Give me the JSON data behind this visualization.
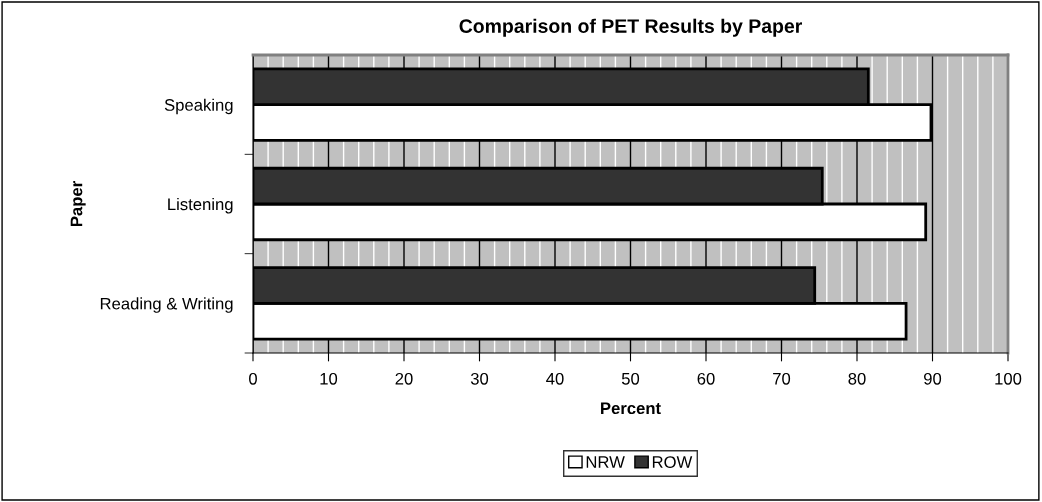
{
  "chart_data": {
    "type": "bar",
    "orientation": "horizontal",
    "title": "Comparison of PET Results by Paper",
    "xlabel": "Percent",
    "ylabel": "Paper",
    "categories": [
      "Speaking",
      "Listening",
      "Reading & Writing"
    ],
    "series": [
      {
        "name": "NRW",
        "color": "#ffffff",
        "values": [
          89.8,
          89.1,
          86.5
        ]
      },
      {
        "name": "ROW",
        "color": "#333333",
        "values": [
          81.5,
          75.4,
          74.4
        ]
      }
    ],
    "xlim": [
      0,
      100
    ],
    "xticks": [
      0,
      10,
      20,
      30,
      40,
      50,
      60,
      70,
      80,
      90,
      100
    ],
    "grid": "x",
    "legend": "bottom"
  }
}
